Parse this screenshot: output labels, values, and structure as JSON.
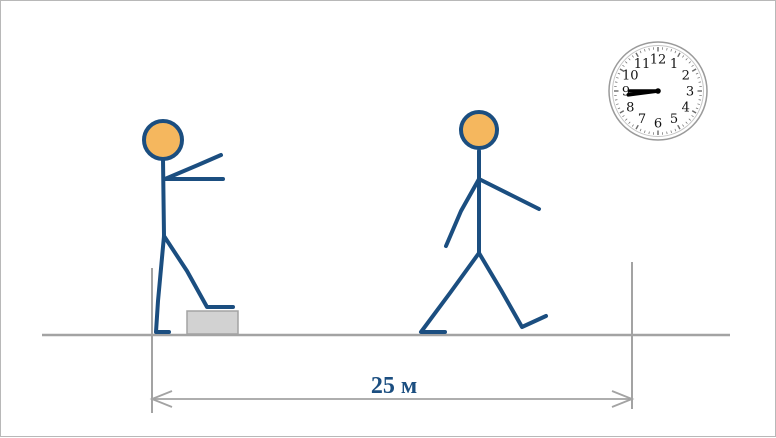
{
  "distance_label": "25 м",
  "clock": {
    "numerals": [
      "12",
      "1",
      "2",
      "3",
      "4",
      "5",
      "6",
      "7",
      "8",
      "9",
      "10",
      "11"
    ],
    "time": "8:45"
  },
  "colors": {
    "figure_stroke": "#1b4e80",
    "head_fill": "#f5b75e",
    "ground": "#a3a3a3",
    "label": "#1b4e80",
    "block_fill": "#d2d2d2"
  }
}
